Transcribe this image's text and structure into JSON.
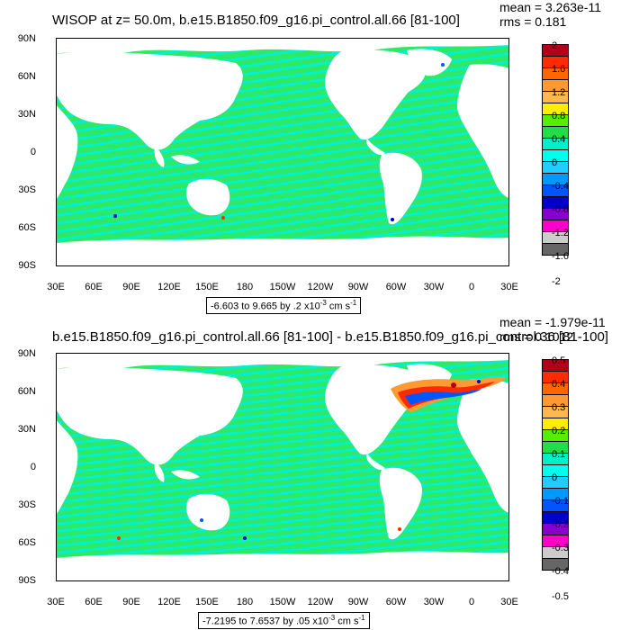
{
  "panels": [
    {
      "title": "WISOP at z=  50.0m, b.e15.B1850.f09_g16.pi_control.all.66 [81-100]",
      "mean": "mean = 3.263e-11",
      "rms": "rms = 0.181",
      "units_prefix": "-6.603 to 9.665 by .2 x10",
      "units_exp": "-3",
      "units_mid": " cm s",
      "units_exp2": "-1",
      "colorbar_labels": [
        "2",
        "1.6",
        "1.2",
        "0.8",
        "0.4",
        "0",
        "-0.4",
        "-0.8",
        "-1.2",
        "-1.6",
        "-2"
      ]
    },
    {
      "title": "b.e15.B1850.f09_g16.pi_control.all.66 [81-100] - b.e15.B1850.f09_g16.pi_control.36 [81-100]",
      "mean": "mean = -1.979e-11",
      "rms": "rms = 0.1012",
      "units_prefix": "-7.2195 to 7.6537 by .05 x10",
      "units_exp": "-3",
      "units_mid": " cm s",
      "units_exp2": "-1",
      "colorbar_labels": [
        "0.5",
        "0.4",
        "0.3",
        "0.2",
        "0.1",
        "0",
        "-0.1",
        "-0.2",
        "-0.3",
        "-0.4",
        "-0.5"
      ]
    }
  ],
  "lat_labels": [
    "90N",
    "60N",
    "30N",
    "0",
    "30S",
    "60S",
    "90S"
  ],
  "lon_labels": [
    "30E",
    "60E",
    "90E",
    "120E",
    "150E",
    "180",
    "150W",
    "120W",
    "90W",
    "60W",
    "30W",
    "0",
    "30E"
  ],
  "colorbar_colors": [
    "#b3001a",
    "#ff2a00",
    "#ff6600",
    "#ff9a33",
    "#ffb84d",
    "#ffee00",
    "#55ee00",
    "#22dd44",
    "#00eec8",
    "#00ffee",
    "#22ccff",
    "#0099ff",
    "#0055ff",
    "#0000cc",
    "#8800cc",
    "#ff00cc",
    "#cccccc",
    "#666666"
  ],
  "palette": {
    "ocean_main": "#2ee866",
    "ocean_alt": "#00f0d0",
    "land": "#ffffff"
  }
}
